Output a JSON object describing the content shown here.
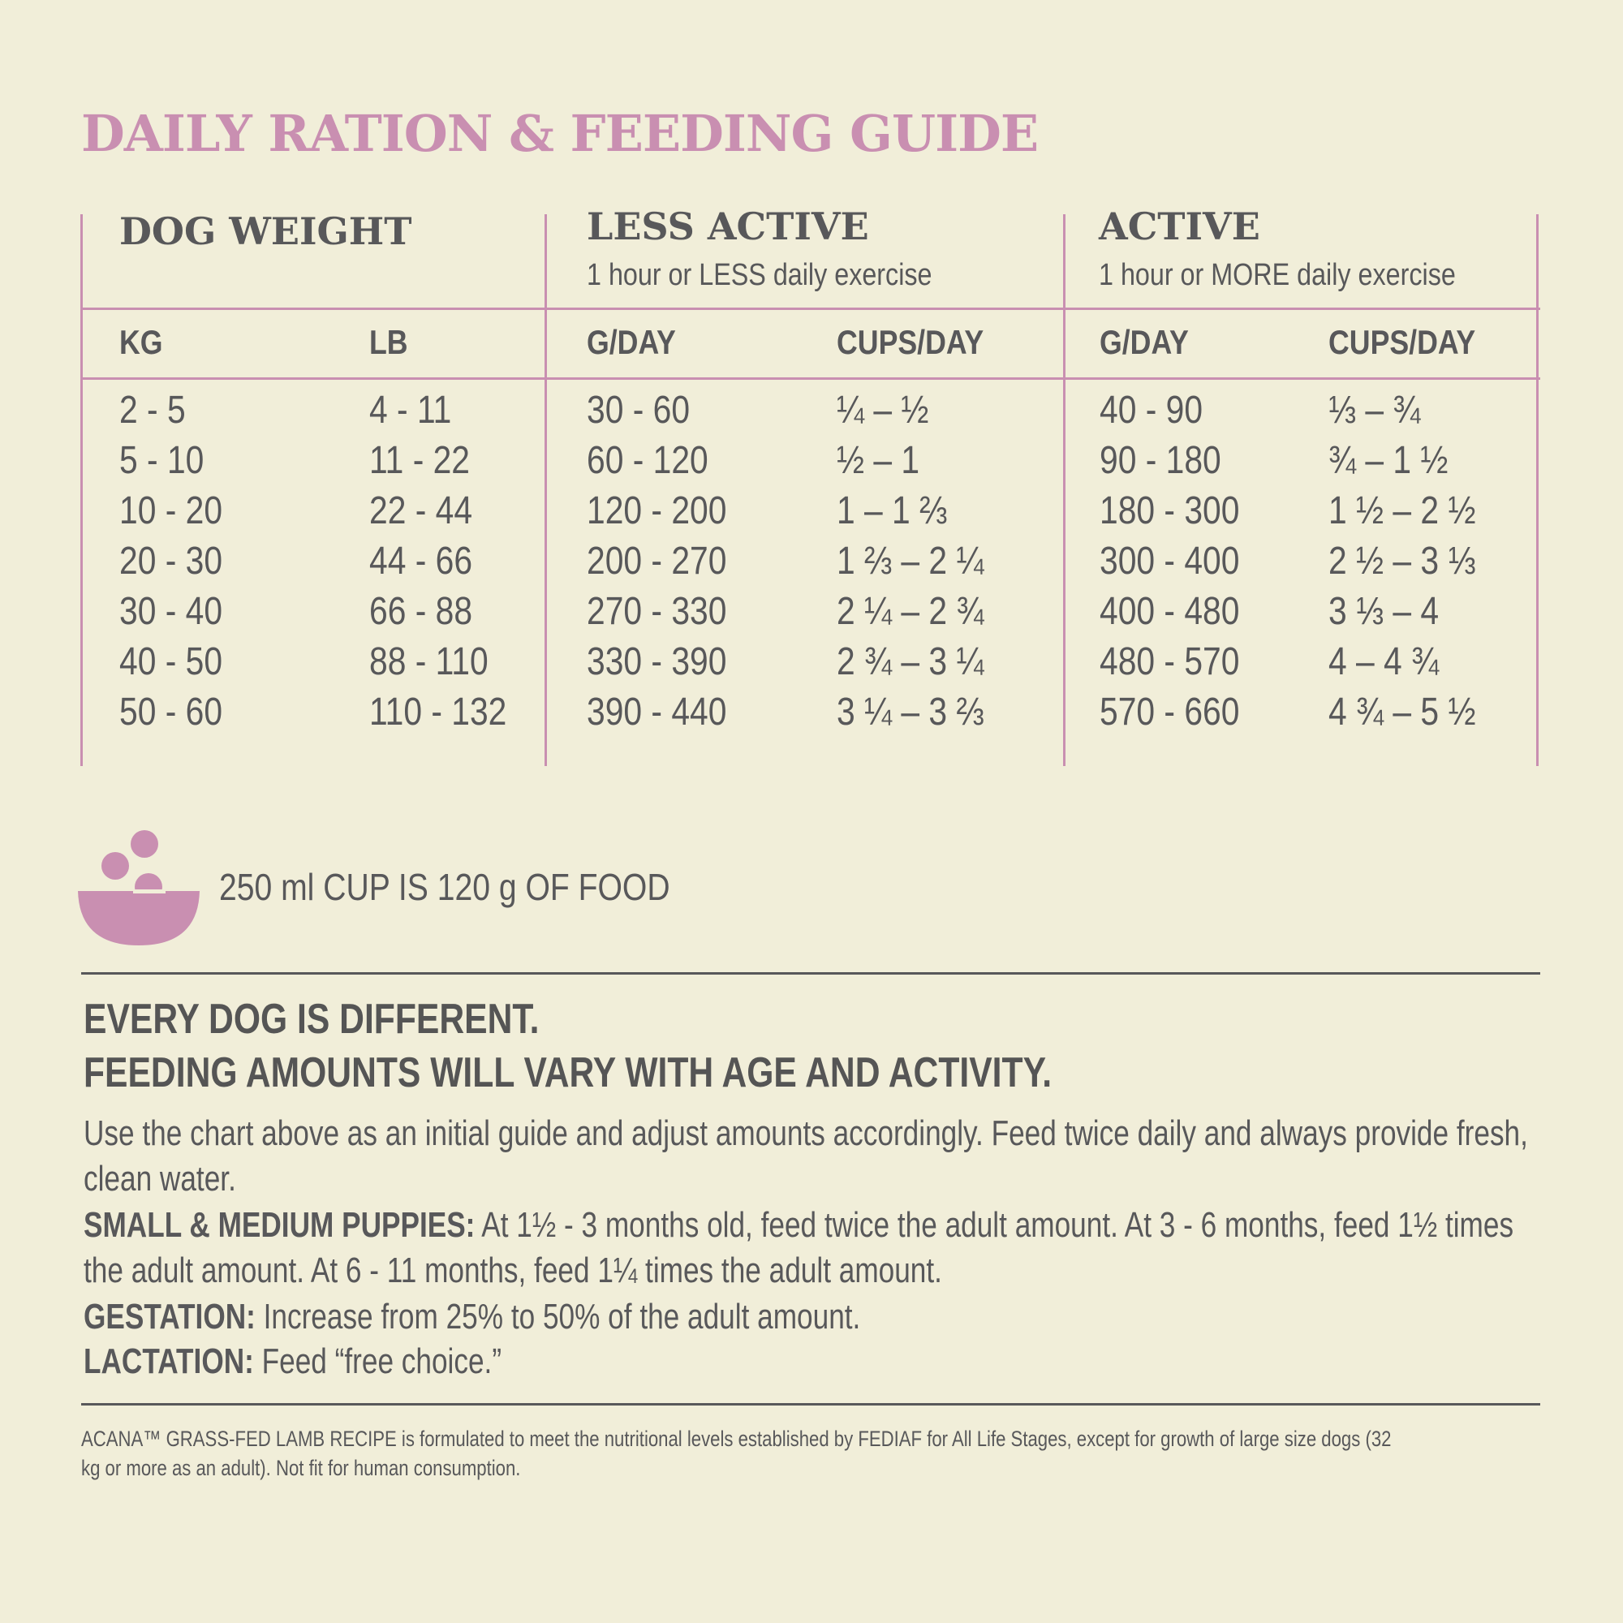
{
  "title": "DAILY RATION & FEEDING GUIDE",
  "colors": {
    "accent": "#c98fb1",
    "text": "#58585a",
    "background": "#f1eed9"
  },
  "table": {
    "groups": [
      {
        "label": "DOG WEIGHT",
        "subtitle": ""
      },
      {
        "label": "LESS ACTIVE",
        "subtitle": "1 hour or LESS daily exercise"
      },
      {
        "label": "ACTIVE",
        "subtitle": "1 hour or MORE daily exercise"
      }
    ],
    "columns": [
      "KG",
      "LB",
      "G/DAY",
      "CUPS/DAY",
      "G/DAY",
      "CUPS/DAY"
    ],
    "rows": [
      [
        "2 - 5",
        "4 - 11",
        "30 - 60",
        "¼ – ½",
        "40 - 90",
        "⅓ – ¾"
      ],
      [
        "5 - 10",
        "11 - 22",
        "60 - 120",
        "½ – 1",
        "90 - 180",
        "¾ – 1 ½"
      ],
      [
        "10 - 20",
        "22 - 44",
        "120 - 200",
        "1 – 1 ⅔",
        "180 - 300",
        "1 ½ – 2 ½"
      ],
      [
        "20 - 30",
        "44 - 66",
        "200 - 270",
        "1 ⅔ – 2 ¼",
        "300 - 400",
        "2 ½  – 3 ⅓"
      ],
      [
        "30 - 40",
        "66 - 88",
        "270 - 330",
        "2 ¼ – 2 ¾",
        "400 - 480",
        "3 ⅓ – 4"
      ],
      [
        "40 - 50",
        "88 - 110",
        "330 - 390",
        "2 ¾ – 3 ¼",
        "480 - 570",
        "4 – 4 ¾"
      ],
      [
        "50 - 60",
        "110 - 132",
        "390 - 440",
        "3 ¼ – 3 ⅔",
        "570 - 660",
        "4 ¾ – 5 ½"
      ]
    ]
  },
  "cup_note": {
    "icon": "food-bowl-icon",
    "text": "250 ml CUP IS 120 g OF FOOD"
  },
  "headline": [
    "EVERY DOG IS DIFFERENT.",
    "FEEDING AMOUNTS WILL VARY WITH AGE AND ACTIVITY."
  ],
  "body": {
    "intro_line1": "Use the chart above as an initial guide and adjust amounts accordingly. Feed twice daily and always provide fresh,",
    "intro_line2": "clean water.",
    "puppies_label": "SMALL & MEDIUM PUPPIES:",
    "puppies_line1": " At 1½ - 3 months old, feed twice the adult amount. At 3 - 6 months, feed 1½ times",
    "puppies_line2": "the adult amount. At 6 - 11 months, feed 1¼ times the adult amount.",
    "gestation_label": "GESTATION:",
    "gestation_text": " Increase from 25% to 50% of the adult amount.",
    "lactation_label": "LACTATION:",
    "lactation_text": " Feed “free choice.”"
  },
  "footnote": {
    "line1": "ACANA™ GRASS-FED LAMB RECIPE is formulated to meet the nutritional levels established by FEDIAF for All Life Stages, except for growth of large size dogs (32",
    "line2": "kg or more as an adult). Not fit for human consumption."
  }
}
